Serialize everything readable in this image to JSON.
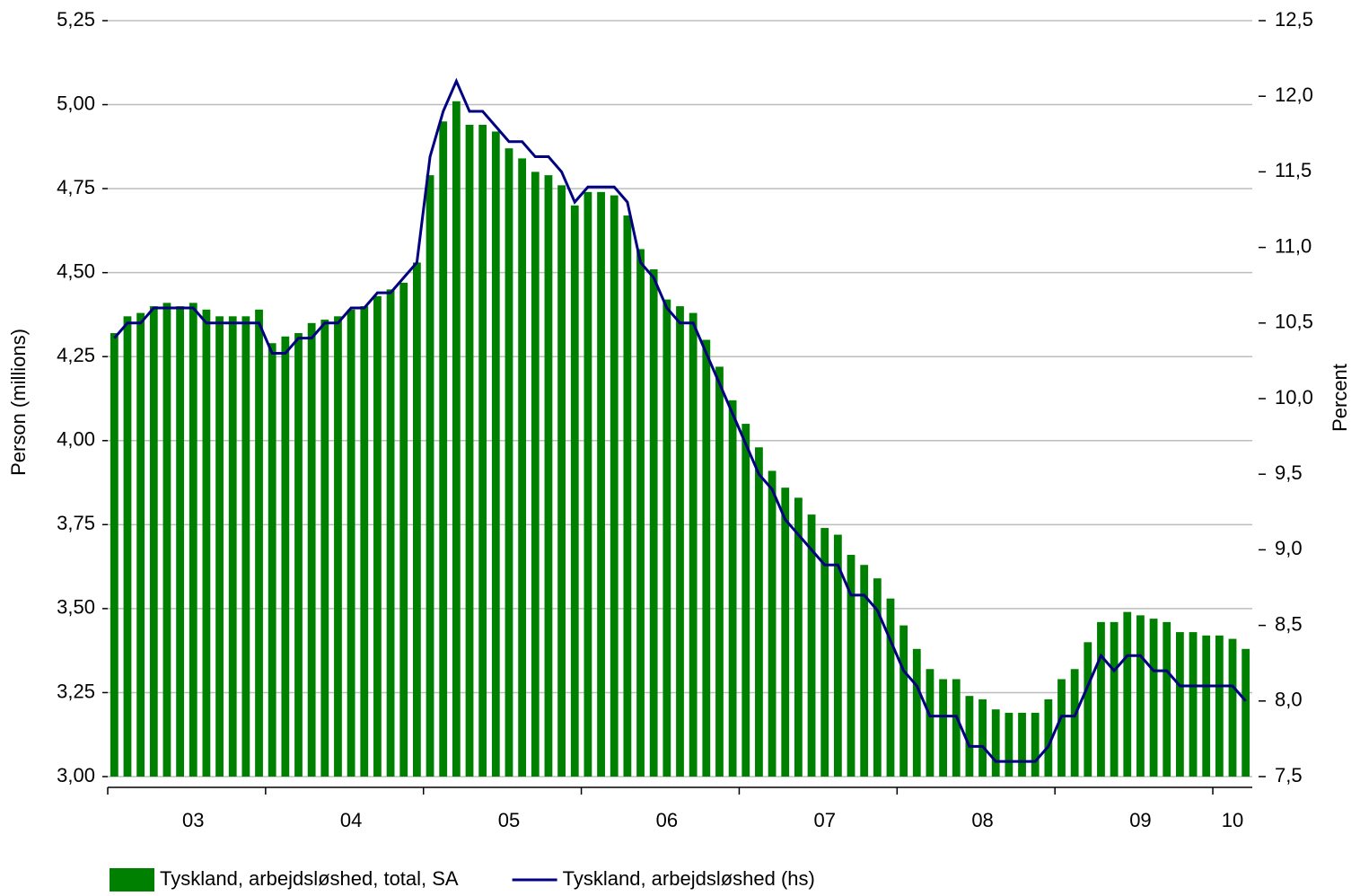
{
  "chart_data": {
    "type": "bar_line",
    "ylabel": "Person (millions)",
    "y2label": "Percent",
    "categories": [
      null,
      null,
      null,
      null,
      null,
      null,
      "03",
      null,
      null,
      null,
      null,
      null,
      null,
      null,
      null,
      null,
      null,
      null,
      "04",
      null,
      null,
      null,
      null,
      null,
      null,
      null,
      null,
      null,
      null,
      null,
      "05",
      null,
      null,
      null,
      null,
      null,
      null,
      null,
      null,
      null,
      null,
      null,
      "06",
      null,
      null,
      null,
      null,
      null,
      null,
      null,
      null,
      null,
      null,
      null,
      "07",
      null,
      null,
      null,
      null,
      null,
      null,
      null,
      null,
      null,
      null,
      null,
      "08",
      null,
      null,
      null,
      null,
      null,
      null,
      null,
      null,
      null,
      null,
      null,
      "09",
      null,
      null,
      null,
      null,
      null,
      null,
      "10",
      null
    ],
    "series": [
      {
        "name": "Tyskland, arbejdsløshed, total, SA",
        "type": "bar",
        "color": "#008000",
        "values": [
          4.32,
          4.37,
          4.38,
          4.4,
          4.41,
          4.4,
          4.41,
          4.39,
          4.37,
          4.37,
          4.37,
          4.39,
          4.29,
          4.31,
          4.32,
          4.35,
          4.36,
          4.37,
          4.39,
          4.4,
          4.43,
          4.45,
          4.47,
          4.53,
          4.79,
          4.95,
          5.01,
          4.94,
          4.94,
          4.92,
          4.87,
          4.84,
          4.8,
          4.79,
          4.76,
          4.7,
          4.74,
          4.74,
          4.73,
          4.67,
          4.57,
          4.51,
          4.42,
          4.4,
          4.38,
          4.3,
          4.22,
          4.12,
          4.05,
          3.98,
          3.91,
          3.86,
          3.83,
          3.78,
          3.74,
          3.72,
          3.66,
          3.63,
          3.59,
          3.53,
          3.45,
          3.38,
          3.32,
          3.29,
          3.29,
          3.24,
          3.23,
          3.2,
          3.19,
          3.19,
          3.19,
          3.23,
          3.29,
          3.32,
          3.4,
          3.46,
          3.46,
          3.49,
          3.48,
          3.47,
          3.46,
          3.43,
          3.43,
          3.42,
          3.42,
          3.41,
          3.38
        ]
      },
      {
        "name": "Tyskland, arbejdsløshed (hs)",
        "type": "line",
        "axis": "y2",
        "color": "#000080",
        "values": [
          10.4,
          10.5,
          10.5,
          10.6,
          10.6,
          10.6,
          10.6,
          10.5,
          10.5,
          10.5,
          10.5,
          10.5,
          10.3,
          10.3,
          10.4,
          10.4,
          10.5,
          10.5,
          10.6,
          10.6,
          10.7,
          10.7,
          10.8,
          10.9,
          11.6,
          11.9,
          12.1,
          11.9,
          11.9,
          11.8,
          11.7,
          11.7,
          11.6,
          11.6,
          11.5,
          11.3,
          11.4,
          11.4,
          11.4,
          11.3,
          10.9,
          10.8,
          10.6,
          10.5,
          10.5,
          10.3,
          10.1,
          9.9,
          9.7,
          9.5,
          9.4,
          9.2,
          9.1,
          9.0,
          8.9,
          8.9,
          8.7,
          8.7,
          8.6,
          8.4,
          8.2,
          8.1,
          7.9,
          7.9,
          7.9,
          7.7,
          7.7,
          7.6,
          7.6,
          7.6,
          7.6,
          7.7,
          7.9,
          7.9,
          8.1,
          8.3,
          8.2,
          8.3,
          8.3,
          8.2,
          8.2,
          8.1,
          8.1,
          8.1,
          8.1,
          8.1,
          8.0
        ]
      }
    ],
    "ylim": [
      3.0,
      5.25
    ],
    "yticks": [
      {
        "value": 3.0,
        "label": "3,00"
      },
      {
        "value": 3.25,
        "label": "3,25"
      },
      {
        "value": 3.5,
        "label": "3,50"
      },
      {
        "value": 3.75,
        "label": "3,75"
      },
      {
        "value": 4.0,
        "label": "4,00"
      },
      {
        "value": 4.25,
        "label": "4,25"
      },
      {
        "value": 4.5,
        "label": "4,50"
      },
      {
        "value": 4.75,
        "label": "4,75"
      },
      {
        "value": 5.0,
        "label": "5,00"
      },
      {
        "value": 5.25,
        "label": "5,25"
      }
    ],
    "y2lim": [
      7.5,
      12.5
    ],
    "y2ticks": [
      {
        "value": 7.5,
        "label": "7,5"
      },
      {
        "value": 8.0,
        "label": "8,0"
      },
      {
        "value": 8.5,
        "label": "8,5"
      },
      {
        "value": 9.0,
        "label": "9,0"
      },
      {
        "value": 9.5,
        "label": "9,5"
      },
      {
        "value": 10.0,
        "label": "10,0"
      },
      {
        "value": 10.5,
        "label": "10,5"
      },
      {
        "value": 11.0,
        "label": "11,0"
      },
      {
        "value": 11.5,
        "label": "11,5"
      },
      {
        "value": 12.0,
        "label": "12,0"
      },
      {
        "value": 12.5,
        "label": "12,5"
      }
    ],
    "grid": true,
    "legend": "bottom"
  }
}
